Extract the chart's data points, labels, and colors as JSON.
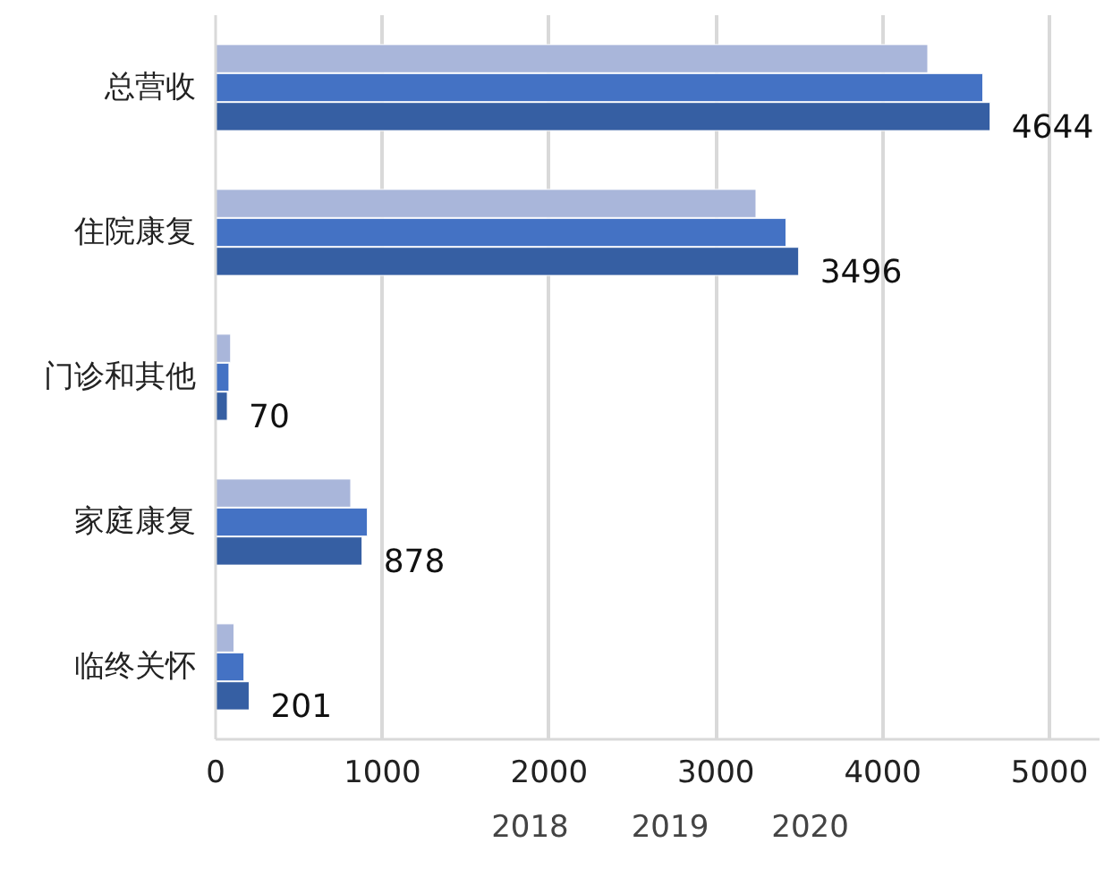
{
  "chart_data": {
    "type": "bar",
    "orientation": "horizontal",
    "categories": [
      "总营收",
      "住院康复",
      "门诊和其他",
      "家庭康复",
      "临终关怀"
    ],
    "series": [
      {
        "name": "2018",
        "color": "#a9b6da",
        "values": [
          4270,
          3240,
          90,
          810,
          110
        ]
      },
      {
        "name": "2019",
        "color": "#4472c4",
        "values": [
          4600,
          3420,
          80,
          910,
          170
        ]
      },
      {
        "name": "2020",
        "color": "#365fa3",
        "values": [
          4644,
          3496,
          70,
          878,
          201
        ],
        "value_labels": [
          "4644",
          "3496",
          "70",
          "878",
          "201"
        ]
      }
    ],
    "xlim": [
      0,
      5300
    ],
    "xticks": [
      0,
      1000,
      2000,
      3000,
      4000,
      5000
    ],
    "grid": "x",
    "legend": "bottom"
  }
}
